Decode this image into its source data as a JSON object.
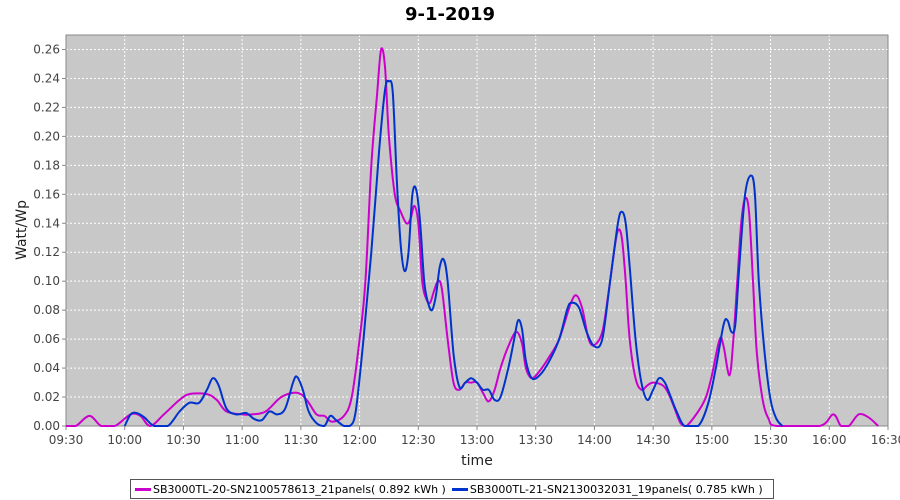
{
  "chart_data": {
    "type": "line",
    "title": "9-1-2019",
    "xlabel": "time",
    "ylabel": "Watt/Wp",
    "xlim": [
      "09:30",
      "16:30"
    ],
    "ylim": [
      0,
      0.27
    ],
    "x_ticks": [
      "09:30",
      "10:00",
      "10:30",
      "11:00",
      "11:30",
      "12:00",
      "12:30",
      "13:00",
      "13:30",
      "14:00",
      "14:30",
      "15:00",
      "15:30",
      "16:00",
      "16:30"
    ],
    "y_ticks": [
      "0.00",
      "0.02",
      "0.04",
      "0.06",
      "0.08",
      "0.10",
      "0.12",
      "0.14",
      "0.16",
      "0.18",
      "0.20",
      "0.22",
      "0.24",
      "0.26"
    ],
    "grid": true,
    "legend_position": "bottom",
    "plot_background": "#c8c8c8",
    "series": [
      {
        "name": "SB3000TL-20-SN2100578613_21panels( 0.892 kWh )",
        "color": "#cc00cc",
        "points": [
          [
            "09:30",
            0.0
          ],
          [
            "09:35",
            0.0
          ],
          [
            "09:42",
            0.007
          ],
          [
            "09:48",
            0.0
          ],
          [
            "09:55",
            0.0
          ],
          [
            "10:03",
            0.008
          ],
          [
            "10:08",
            0.007
          ],
          [
            "10:13",
            0.0
          ],
          [
            "10:20",
            0.008
          ],
          [
            "10:28",
            0.018
          ],
          [
            "10:33",
            0.022
          ],
          [
            "10:42",
            0.022
          ],
          [
            "10:47",
            0.018
          ],
          [
            "10:52",
            0.01
          ],
          [
            "11:00",
            0.008
          ],
          [
            "11:05",
            0.008
          ],
          [
            "11:12",
            0.01
          ],
          [
            "11:20",
            0.02
          ],
          [
            "11:28",
            0.023
          ],
          [
            "11:33",
            0.018
          ],
          [
            "11:38",
            0.008
          ],
          [
            "11:42",
            0.007
          ],
          [
            "11:46",
            0.003
          ],
          [
            "11:52",
            0.007
          ],
          [
            "11:56",
            0.02
          ],
          [
            "12:00",
            0.06
          ],
          [
            "12:03",
            0.1
          ],
          [
            "12:06",
            0.18
          ],
          [
            "12:09",
            0.23
          ],
          [
            "12:11",
            0.26
          ],
          [
            "12:13",
            0.248
          ],
          [
            "12:15",
            0.2
          ],
          [
            "12:18",
            0.16
          ],
          [
            "12:21",
            0.148
          ],
          [
            "12:24",
            0.14
          ],
          [
            "12:26",
            0.143
          ],
          [
            "12:28",
            0.152
          ],
          [
            "12:30",
            0.14
          ],
          [
            "12:32",
            0.1
          ],
          [
            "12:34",
            0.088
          ],
          [
            "12:36",
            0.085
          ],
          [
            "12:38",
            0.093
          ],
          [
            "12:40",
            0.1
          ],
          [
            "12:42",
            0.095
          ],
          [
            "12:45",
            0.06
          ],
          [
            "12:48",
            0.03
          ],
          [
            "12:51",
            0.025
          ],
          [
            "12:54",
            0.03
          ],
          [
            "12:57",
            0.03
          ],
          [
            "13:00",
            0.03
          ],
          [
            "13:03",
            0.023
          ],
          [
            "13:06",
            0.017
          ],
          [
            "13:09",
            0.025
          ],
          [
            "13:12",
            0.04
          ],
          [
            "13:16",
            0.055
          ],
          [
            "13:20",
            0.065
          ],
          [
            "13:23",
            0.057
          ],
          [
            "13:25",
            0.04
          ],
          [
            "13:28",
            0.033
          ],
          [
            "13:32",
            0.038
          ],
          [
            "13:37",
            0.048
          ],
          [
            "13:42",
            0.06
          ],
          [
            "13:48",
            0.085
          ],
          [
            "13:51",
            0.09
          ],
          [
            "13:54",
            0.08
          ],
          [
            "13:57",
            0.06
          ],
          [
            "14:00",
            0.056
          ],
          [
            "14:04",
            0.065
          ],
          [
            "14:07",
            0.09
          ],
          [
            "14:10",
            0.12
          ],
          [
            "14:12",
            0.135
          ],
          [
            "14:14",
            0.13
          ],
          [
            "14:16",
            0.1
          ],
          [
            "14:18",
            0.06
          ],
          [
            "14:21",
            0.033
          ],
          [
            "14:24",
            0.025
          ],
          [
            "14:27",
            0.028
          ],
          [
            "14:30",
            0.03
          ],
          [
            "14:35",
            0.028
          ],
          [
            "14:38",
            0.022
          ],
          [
            "14:41",
            0.012
          ],
          [
            "14:44",
            0.002
          ],
          [
            "14:47",
            0.0
          ],
          [
            "14:53",
            0.01
          ],
          [
            "14:57",
            0.02
          ],
          [
            "15:00",
            0.035
          ],
          [
            "15:04",
            0.06
          ],
          [
            "15:06",
            0.055
          ],
          [
            "15:09",
            0.035
          ],
          [
            "15:11",
            0.06
          ],
          [
            "15:13",
            0.1
          ],
          [
            "15:15",
            0.14
          ],
          [
            "15:17",
            0.157
          ],
          [
            "15:19",
            0.148
          ],
          [
            "15:21",
            0.1
          ],
          [
            "15:23",
            0.05
          ],
          [
            "15:26",
            0.018
          ],
          [
            "15:29",
            0.005
          ],
          [
            "15:33",
            0.0
          ],
          [
            "15:55",
            0.0
          ],
          [
            "16:02",
            0.008
          ],
          [
            "16:06",
            0.0
          ],
          [
            "16:10",
            0.0
          ],
          [
            "16:15",
            0.008
          ],
          [
            "16:20",
            0.006
          ],
          [
            "16:25",
            0.0
          ]
        ]
      },
      {
        "name": "SB3000TL-21-SN2130032031_19panels( 0.785 kWh )",
        "color": "#0033cc",
        "points": [
          [
            "10:00",
            0.0
          ],
          [
            "10:03",
            0.008
          ],
          [
            "10:06",
            0.009
          ],
          [
            "10:10",
            0.006
          ],
          [
            "10:15",
            0.0
          ],
          [
            "10:22",
            0.0
          ],
          [
            "10:28",
            0.01
          ],
          [
            "10:33",
            0.016
          ],
          [
            "10:38",
            0.016
          ],
          [
            "10:42",
            0.025
          ],
          [
            "10:45",
            0.033
          ],
          [
            "10:48",
            0.028
          ],
          [
            "10:52",
            0.012
          ],
          [
            "10:57",
            0.008
          ],
          [
            "11:02",
            0.009
          ],
          [
            "11:06",
            0.005
          ],
          [
            "11:10",
            0.004
          ],
          [
            "11:14",
            0.01
          ],
          [
            "11:18",
            0.008
          ],
          [
            "11:22",
            0.012
          ],
          [
            "11:26",
            0.03
          ],
          [
            "11:28",
            0.034
          ],
          [
            "11:31",
            0.025
          ],
          [
            "11:34",
            0.01
          ],
          [
            "11:38",
            0.002
          ],
          [
            "11:42",
            0.0
          ],
          [
            "11:45",
            0.007
          ],
          [
            "11:48",
            0.004
          ],
          [
            "11:52",
            0.0
          ],
          [
            "11:55",
            0.0
          ],
          [
            "11:58",
            0.01
          ],
          [
            "12:02",
            0.06
          ],
          [
            "12:06",
            0.12
          ],
          [
            "12:10",
            0.19
          ],
          [
            "12:13",
            0.232
          ],
          [
            "12:15",
            0.238
          ],
          [
            "12:17",
            0.23
          ],
          [
            "12:19",
            0.17
          ],
          [
            "12:21",
            0.125
          ],
          [
            "12:23",
            0.107
          ],
          [
            "12:25",
            0.12
          ],
          [
            "12:27",
            0.16
          ],
          [
            "12:29",
            0.163
          ],
          [
            "12:31",
            0.14
          ],
          [
            "12:33",
            0.1
          ],
          [
            "12:35",
            0.085
          ],
          [
            "12:37",
            0.08
          ],
          [
            "12:39",
            0.09
          ],
          [
            "12:41",
            0.11
          ],
          [
            "12:43",
            0.115
          ],
          [
            "12:45",
            0.1
          ],
          [
            "12:48",
            0.05
          ],
          [
            "12:51",
            0.027
          ],
          [
            "12:54",
            0.03
          ],
          [
            "12:57",
            0.033
          ],
          [
            "13:00",
            0.03
          ],
          [
            "13:03",
            0.025
          ],
          [
            "13:06",
            0.025
          ],
          [
            "13:09",
            0.018
          ],
          [
            "13:12",
            0.02
          ],
          [
            "13:16",
            0.04
          ],
          [
            "13:19",
            0.06
          ],
          [
            "13:21",
            0.073
          ],
          [
            "13:23",
            0.067
          ],
          [
            "13:25",
            0.045
          ],
          [
            "13:28",
            0.033
          ],
          [
            "13:32",
            0.035
          ],
          [
            "13:37",
            0.045
          ],
          [
            "13:42",
            0.06
          ],
          [
            "13:46",
            0.08
          ],
          [
            "13:48",
            0.085
          ],
          [
            "13:52",
            0.082
          ],
          [
            "13:56",
            0.065
          ],
          [
            "14:00",
            0.055
          ],
          [
            "14:04",
            0.06
          ],
          [
            "14:08",
            0.1
          ],
          [
            "14:12",
            0.14
          ],
          [
            "14:14",
            0.148
          ],
          [
            "14:16",
            0.14
          ],
          [
            "14:18",
            0.11
          ],
          [
            "14:21",
            0.06
          ],
          [
            "14:24",
            0.03
          ],
          [
            "14:27",
            0.018
          ],
          [
            "14:30",
            0.025
          ],
          [
            "14:33",
            0.033
          ],
          [
            "14:36",
            0.03
          ],
          [
            "14:39",
            0.02
          ],
          [
            "14:42",
            0.01
          ],
          [
            "14:46",
            0.0
          ],
          [
            "14:53",
            0.0
          ],
          [
            "14:58",
            0.015
          ],
          [
            "15:02",
            0.04
          ],
          [
            "15:06",
            0.07
          ],
          [
            "15:08",
            0.073
          ],
          [
            "15:10",
            0.065
          ],
          [
            "15:12",
            0.07
          ],
          [
            "15:14",
            0.11
          ],
          [
            "15:17",
            0.16
          ],
          [
            "15:20",
            0.173
          ],
          [
            "15:22",
            0.16
          ],
          [
            "15:24",
            0.1
          ],
          [
            "15:27",
            0.05
          ],
          [
            "15:30",
            0.018
          ],
          [
            "15:33",
            0.005
          ],
          [
            "15:36",
            0.0
          ]
        ]
      }
    ]
  }
}
